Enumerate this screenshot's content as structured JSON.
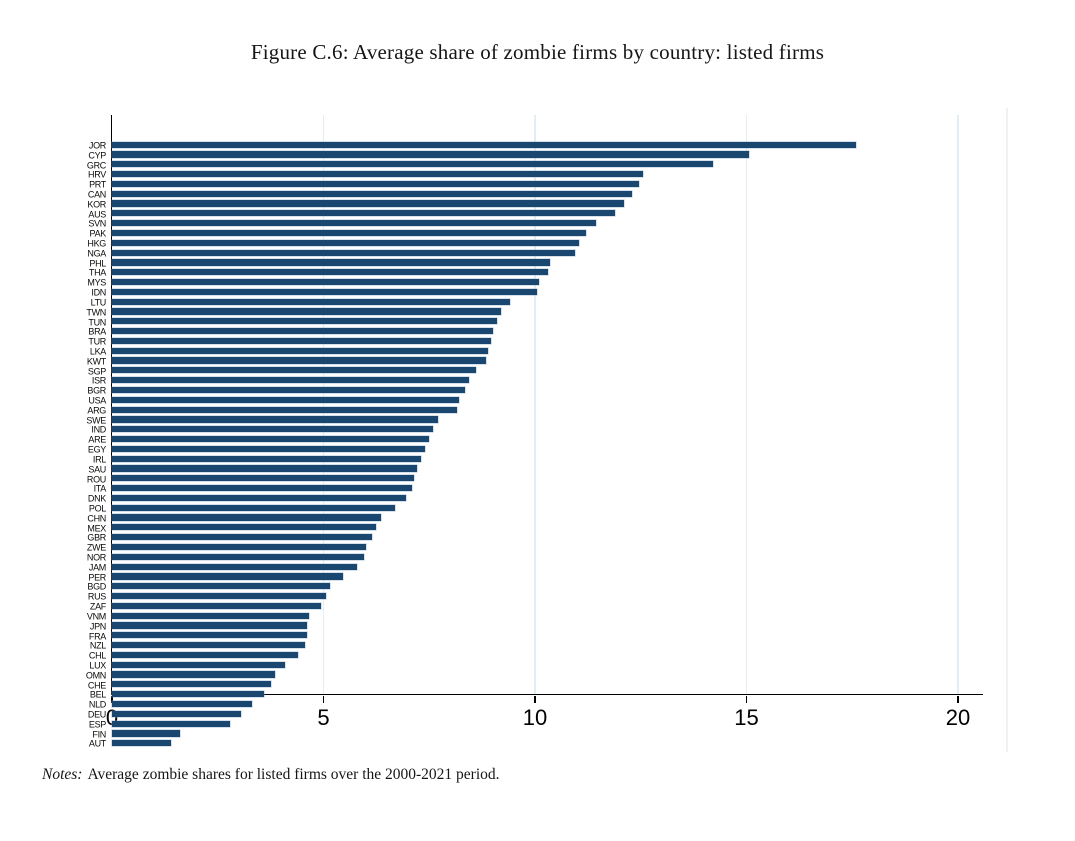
{
  "title": "Figure C.6: Average share of zombie firms by country: listed firms",
  "notes": {
    "label": "Notes:",
    "text": "Average zombie shares for listed firms over the 2000-2021 period."
  },
  "colors": {
    "bar": "#1a476f",
    "grid": "#e2edf4",
    "axis": "#000000",
    "background": "#ffffff"
  },
  "chart_data": {
    "type": "bar",
    "orientation": "horizontal",
    "title": "Figure C.6: Average share of zombie firms by country: listed firms",
    "xlabel": "",
    "ylabel": "",
    "xlim": [
      0,
      20
    ],
    "xticks": [
      0,
      5,
      10,
      15,
      20
    ],
    "grid": true,
    "legend": "none",
    "bar_color": "#1a476f",
    "categories": [
      "JOR",
      "CYP",
      "GRC",
      "HRV",
      "PRT",
      "CAN",
      "KOR",
      "AUS",
      "SVN",
      "PAK",
      "HKG",
      "NGA",
      "PHL",
      "THA",
      "MYS",
      "IDN",
      "LTU",
      "TWN",
      "TUN",
      "BRA",
      "TUR",
      "LKA",
      "KWT",
      "SGP",
      "ISR",
      "BGR",
      "USA",
      "ARG",
      "SWE",
      "IND",
      "ARE",
      "EGY",
      "IRL",
      "SAU",
      "ROU",
      "ITA",
      "DNK",
      "POL",
      "CHN",
      "MEX",
      "GBR",
      "ZWE",
      "NOR",
      "JAM",
      "PER",
      "BGD",
      "RUS",
      "ZAF",
      "VNM",
      "JPN",
      "FRA",
      "NZL",
      "CHL",
      "LUX",
      "OMN",
      "CHE",
      "BEL",
      "NLD",
      "DEU",
      "ESP",
      "FIN",
      "AUT"
    ],
    "values": [
      17.6,
      15.05,
      14.2,
      12.55,
      12.45,
      12.3,
      12.1,
      11.9,
      11.45,
      11.2,
      11.05,
      10.95,
      10.35,
      10.3,
      10.1,
      10.05,
      9.4,
      9.2,
      9.1,
      9.0,
      8.95,
      8.9,
      8.85,
      8.6,
      8.45,
      8.35,
      8.2,
      8.15,
      7.7,
      7.6,
      7.5,
      7.4,
      7.3,
      7.2,
      7.15,
      7.1,
      6.95,
      6.7,
      6.35,
      6.25,
      6.15,
      6.0,
      5.95,
      5.8,
      5.45,
      5.15,
      5.05,
      4.95,
      4.65,
      4.62,
      4.6,
      4.57,
      4.4,
      4.1,
      3.85,
      3.75,
      3.6,
      3.3,
      3.05,
      2.8,
      1.6,
      1.4
    ]
  }
}
